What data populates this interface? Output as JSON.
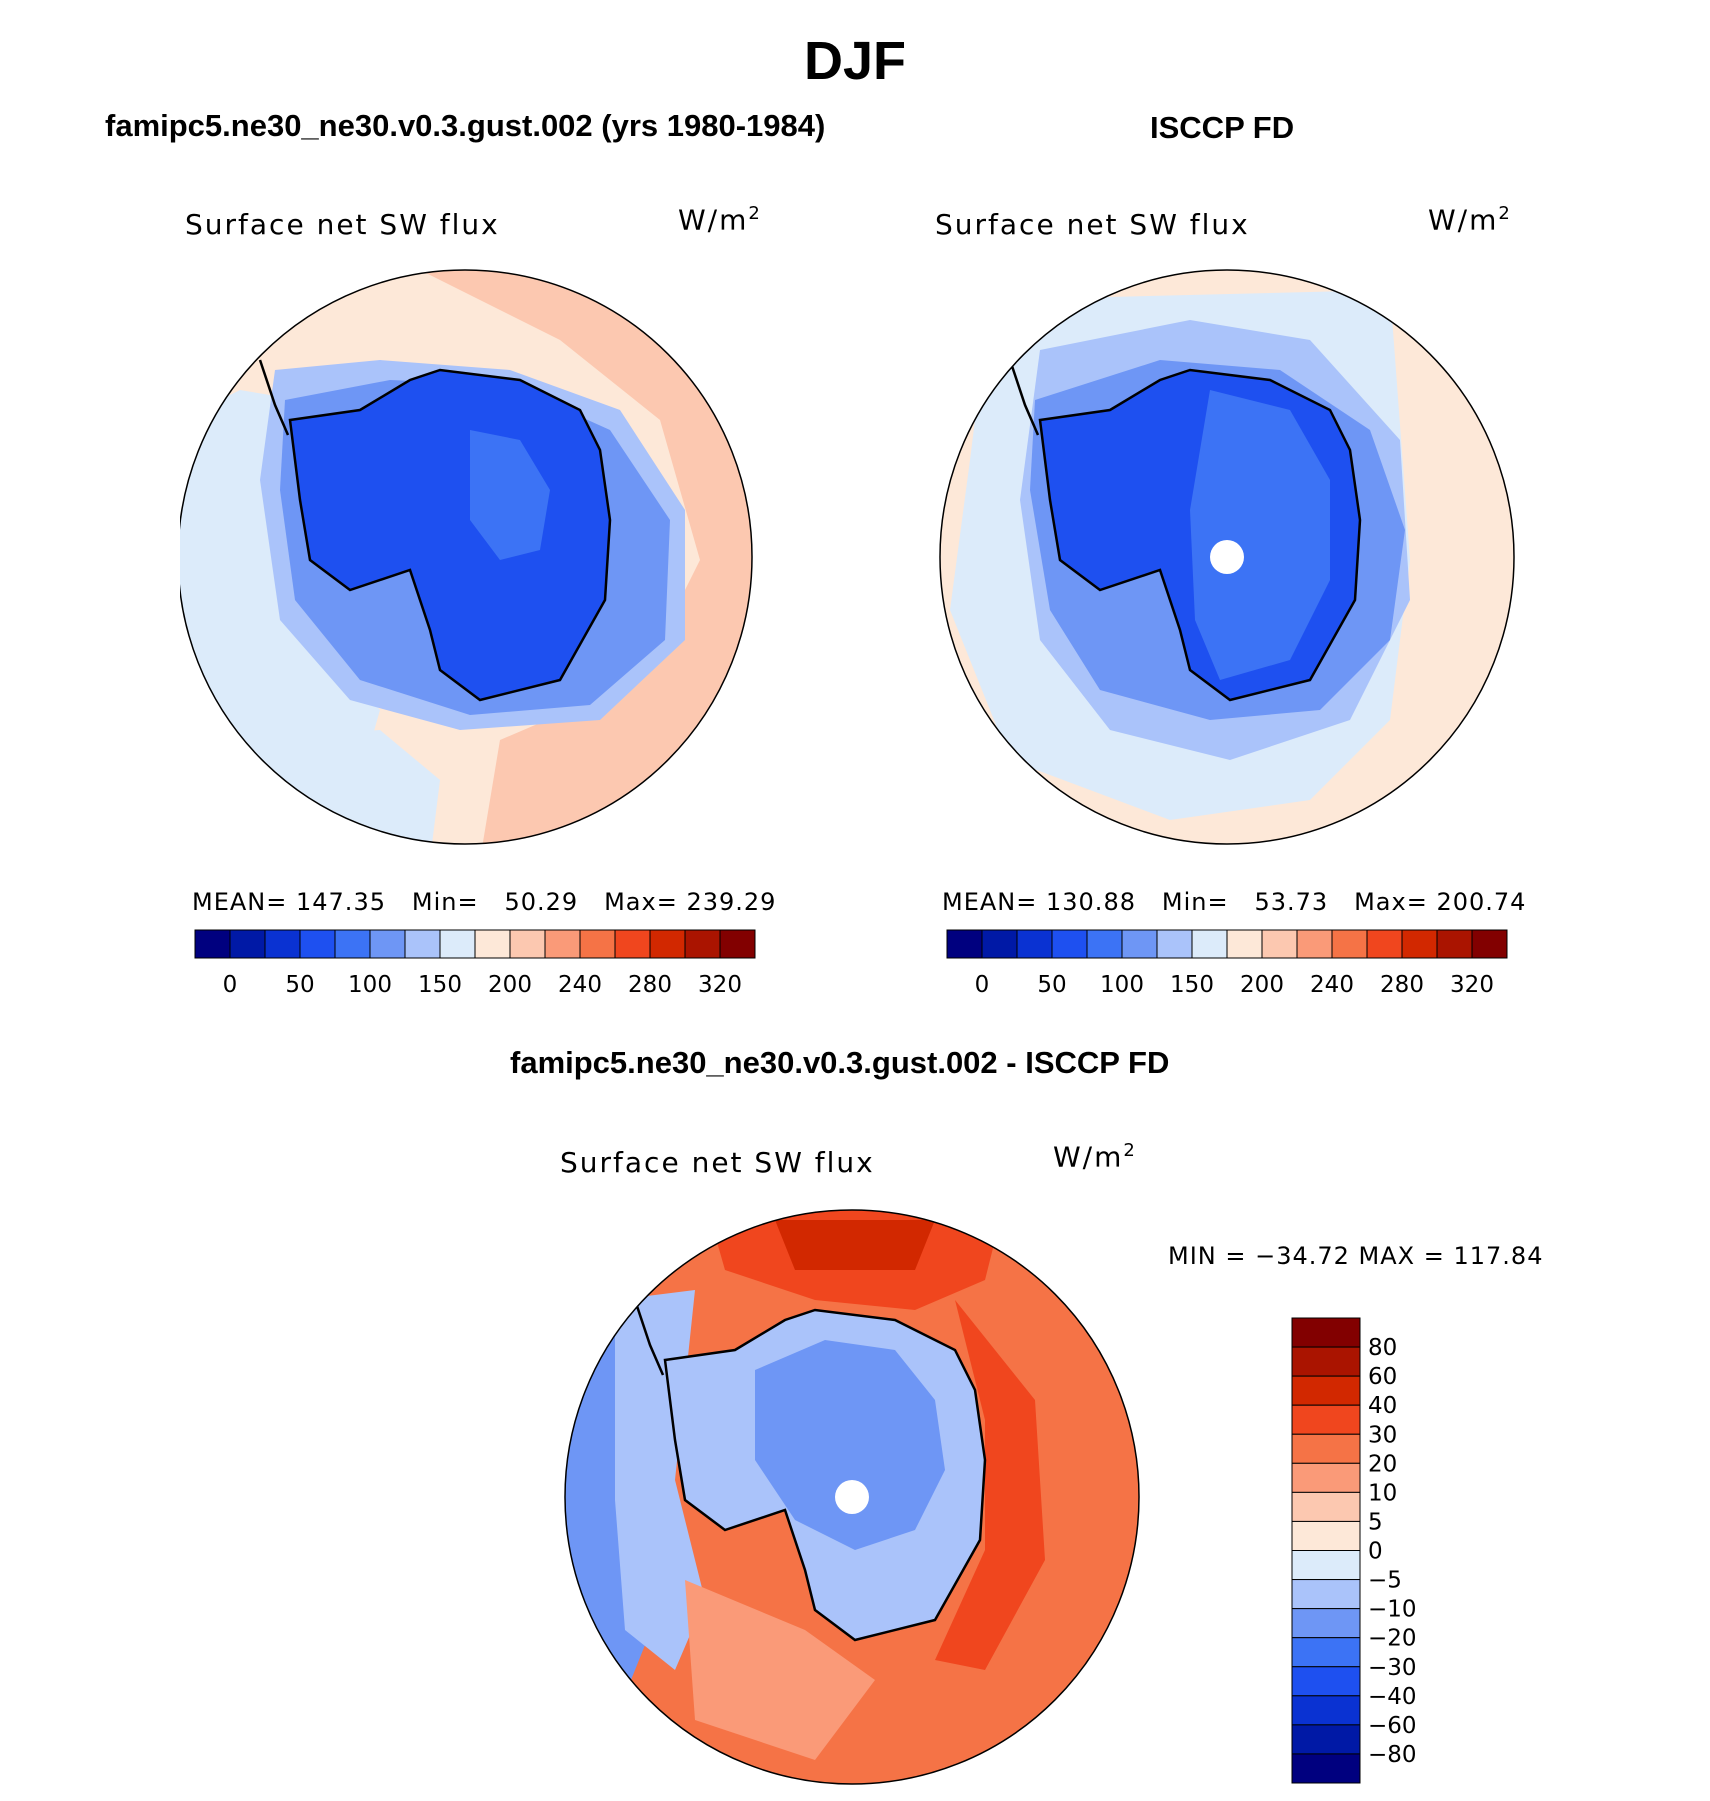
{
  "title": "DJF",
  "panels": [
    {
      "id": "model",
      "title": "famipc5.ne30_ne30.v0.3.gust.002 (yrs 1980-1984)",
      "variable": "Surface net SW flux",
      "units_base": "W/m",
      "units_exp": "2",
      "stats": {
        "mean_label": "MEAN=",
        "mean": "147.35",
        "min_label": "Min=",
        "min": "50.29",
        "max_label": "Max=",
        "max": "239.29"
      }
    },
    {
      "id": "obs",
      "title": "ISCCP FD",
      "variable": "Surface net SW flux",
      "units_base": "W/m",
      "units_exp": "2",
      "stats": {
        "mean_label": "MEAN=",
        "mean": "130.88",
        "min_label": "Min=",
        "min": "53.73",
        "max_label": "Max=",
        "max": "200.74"
      }
    }
  ],
  "diff": {
    "title": "famipc5.ne30_ne30.v0.3.gust.002 - ISCCP FD",
    "variable": "Surface net SW flux",
    "units_base": "W/m",
    "units_exp": "2",
    "minmax": "MIN = −34.72 MAX = 117.84"
  },
  "abs_colorbar": {
    "colors": [
      "#00007f",
      "#0019a6",
      "#0a32d2",
      "#1e50f0",
      "#3c73f5",
      "#6e96f5",
      "#aac3fa",
      "#dcebfa",
      "#fde8d8",
      "#fcc8b0",
      "#fa9a78",
      "#f57346",
      "#f0461e",
      "#d22800",
      "#aa1400",
      "#820000"
    ],
    "tick_labels": [
      "0",
      "50",
      "100",
      "150",
      "200",
      "240",
      "280",
      "320"
    ]
  },
  "diff_colorbar": {
    "colors": [
      "#820000",
      "#aa1400",
      "#d22800",
      "#f0461e",
      "#f57346",
      "#fa9a78",
      "#fcc8b0",
      "#fde8d8",
      "#dcebfa",
      "#aac3fa",
      "#6e96f5",
      "#3c73f5",
      "#1e50f0",
      "#0a32d2",
      "#0019a6",
      "#00007f"
    ],
    "tick_labels": [
      "80",
      "60",
      "40",
      "30",
      "20",
      "10",
      "5",
      "0",
      "−5",
      "−10",
      "−20",
      "−30",
      "−40",
      "−60",
      "−80"
    ]
  },
  "map_colors": {
    "ocean_warm": "#fde8d8",
    "ocean_warmer": "#fcc8b0",
    "ocean_cool": "#dcebfa",
    "ocean_cooler": "#aac3fa",
    "coast_mid": "#6e96f5",
    "ice_dark": "#1e50f0",
    "ice_mid": "#3c73f5",
    "diff_red1": "#f57346",
    "diff_red2": "#f0461e",
    "diff_red3": "#d22800",
    "diff_pink": "#fa9a78",
    "diff_blue": "#aac3fa",
    "diff_blue2": "#6e96f5"
  }
}
